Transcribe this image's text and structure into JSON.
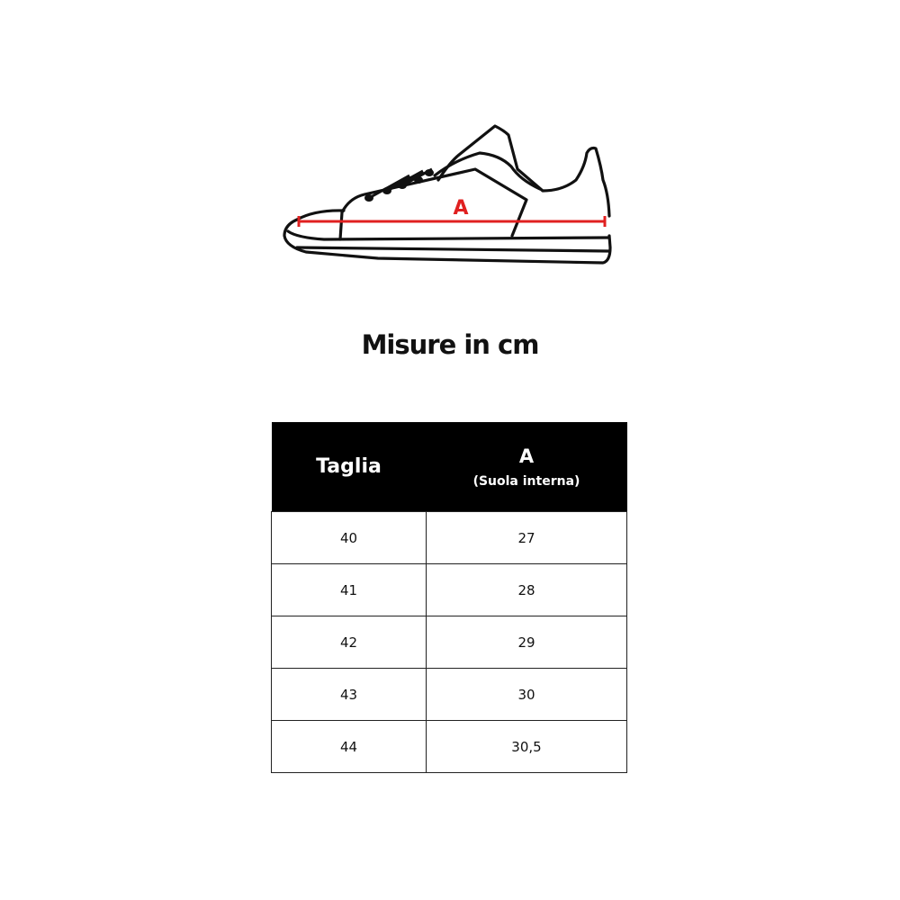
{
  "diagram": {
    "measure_label": "A",
    "measure_color": "#e02020"
  },
  "title": "Misure in cm",
  "table": {
    "headers": {
      "size": "Taglia",
      "measure": "A",
      "measure_sub": "(Suola interna)"
    },
    "rows": [
      {
        "size": "40",
        "a": "27"
      },
      {
        "size": "41",
        "a": "28"
      },
      {
        "size": "42",
        "a": "29"
      },
      {
        "size": "43",
        "a": "30"
      },
      {
        "size": "44",
        "a": "30,5"
      }
    ]
  }
}
